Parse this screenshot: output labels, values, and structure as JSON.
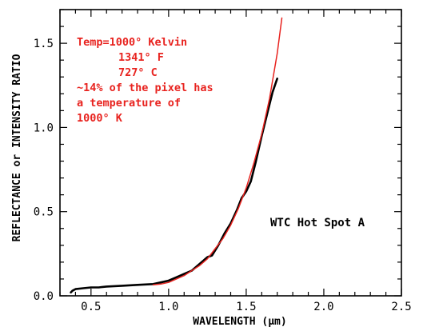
{
  "chart_data": {
    "type": "line",
    "xlabel": "WAVELENGTH (μm)",
    "ylabel": "REFLECTANCE or INTENSITY RATIO",
    "xlim": [
      0.3,
      2.5
    ],
    "ylim": [
      0.0,
      1.7
    ],
    "x_ticks": [
      "0.5",
      "1.0",
      "1.5",
      "2.0",
      "2.5"
    ],
    "y_ticks": [
      "0.0",
      "0.5",
      "1.0",
      "1.5"
    ],
    "annotations": {
      "red_lines": [
        "Temp=1000° Kelvin",
        "1341° F",
        "727° C",
        "~14% of the pixel has",
        "a temperature of",
        "1000° K"
      ],
      "label": "WTC Hot Spot A"
    },
    "colors": {
      "measured": "#000000",
      "model": "#e8231f"
    },
    "series": [
      {
        "style": "measured",
        "x": [
          0.37,
          0.38,
          0.4,
          0.45,
          0.5,
          0.55,
          0.6,
          0.7,
          0.8,
          0.9,
          0.95,
          1.0,
          1.05,
          1.1,
          1.15,
          1.2,
          1.25,
          1.28,
          1.32,
          1.36,
          1.4,
          1.44,
          1.47,
          1.5,
          1.53,
          1.56,
          1.6,
          1.64,
          1.67,
          1.7
        ],
        "y": [
          0.02,
          0.03,
          0.04,
          0.045,
          0.05,
          0.05,
          0.055,
          0.06,
          0.065,
          0.07,
          0.08,
          0.09,
          0.11,
          0.13,
          0.15,
          0.19,
          0.23,
          0.24,
          0.3,
          0.37,
          0.43,
          0.51,
          0.58,
          0.62,
          0.68,
          0.79,
          0.95,
          1.1,
          1.21,
          1.29
        ]
      },
      {
        "style": "model",
        "x": [
          0.9,
          0.95,
          1.0,
          1.05,
          1.1,
          1.15,
          1.2,
          1.25,
          1.3,
          1.35,
          1.4,
          1.45,
          1.5,
          1.55,
          1.6,
          1.65,
          1.7,
          1.73
        ],
        "y": [
          0.065,
          0.07,
          0.08,
          0.1,
          0.12,
          0.15,
          0.18,
          0.22,
          0.28,
          0.34,
          0.42,
          0.52,
          0.64,
          0.79,
          0.96,
          1.17,
          1.44,
          1.65
        ]
      }
    ]
  }
}
